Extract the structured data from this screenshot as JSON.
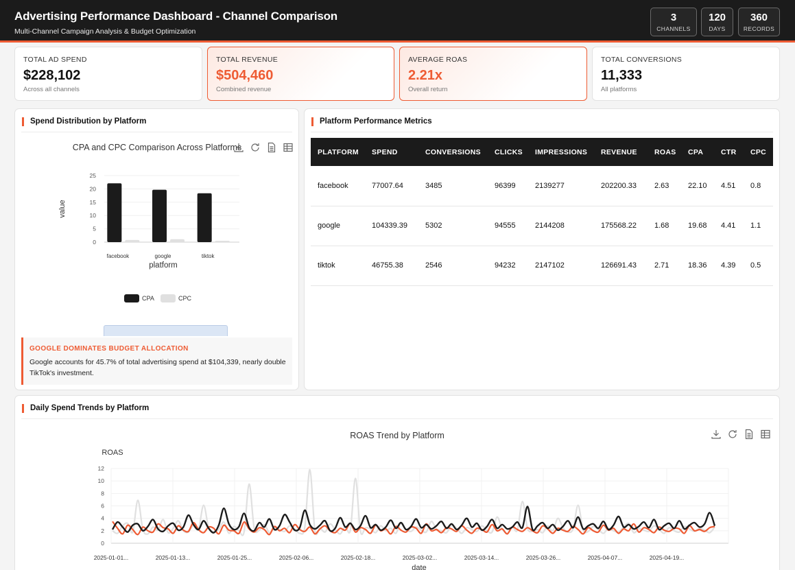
{
  "header": {
    "title": "Advertising Performance Dashboard - Channel Comparison",
    "subtitle": "Multi-Channel Campaign Analysis & Budget Optimization",
    "stats": [
      {
        "value": "3",
        "label": "CHANNELS"
      },
      {
        "value": "120",
        "label": "DAYS"
      },
      {
        "value": "360",
        "label": "RECORDS"
      }
    ]
  },
  "kpis": [
    {
      "label": "TOTAL AD SPEND",
      "value": "$228,102",
      "sub": "Across all channels"
    },
    {
      "label": "TOTAL REVENUE",
      "value": "$504,460",
      "sub": "Combined revenue"
    },
    {
      "label": "AVERAGE ROAS",
      "value": "2.21x",
      "sub": "Overall return"
    },
    {
      "label": "TOTAL CONVERSIONS",
      "value": "11,333",
      "sub": "All platforms"
    }
  ],
  "spend_panel": {
    "title": "Spend Distribution by Platform",
    "insight_title": "GOOGLE DOMINATES BUDGET ALLOCATION",
    "insight_text": "Google accounts for 45.7% of total advertising spend at $104,339, nearly double TikTok's investment."
  },
  "metrics_panel": {
    "title": "Platform Performance Metrics",
    "columns": [
      "PLATFORM",
      "SPEND",
      "CONVERSIONS",
      "CLICKS",
      "IMPRESSIONS",
      "REVENUE",
      "ROAS",
      "CPA",
      "CTR",
      "CPC"
    ],
    "rows": [
      [
        "facebook",
        "77007.64",
        "3485",
        "96399",
        "2139277",
        "202200.33",
        "2.63",
        "22.10",
        "4.51",
        "0.8"
      ],
      [
        "google",
        "104339.39",
        "5302",
        "94555",
        "2144208",
        "175568.22",
        "1.68",
        "19.68",
        "4.41",
        "1.1"
      ],
      [
        "tiktok",
        "46755.38",
        "2546",
        "94232",
        "2147102",
        "126691.43",
        "2.71",
        "18.36",
        "4.39",
        "0.5"
      ]
    ]
  },
  "trend_panel": {
    "title": "Daily Spend Trends by Platform"
  },
  "icons": [
    "download-icon",
    "refresh-icon",
    "data-view-icon",
    "table-icon"
  ],
  "colors": {
    "accent": "#ee5b33",
    "dark": "#1b1b1b",
    "light_series": "#e0e0e0"
  },
  "chart_data": [
    {
      "type": "bar",
      "title": "CPA and CPC Comparison Across Platforms",
      "xlabel": "platform",
      "ylabel": "value",
      "categories": [
        "facebook",
        "google",
        "tiktok"
      ],
      "series": [
        {
          "name": "CPA",
          "values": [
            22.1,
            19.68,
            18.36
          ],
          "color": "#1b1b1b"
        },
        {
          "name": "CPC",
          "values": [
            0.8,
            1.1,
            0.5
          ],
          "color": "#e0e0e0"
        }
      ],
      "ylim": [
        0,
        25
      ],
      "yticks": [
        0,
        5,
        10,
        15,
        20,
        25
      ],
      "legend": "bottom",
      "grid": true
    },
    {
      "type": "line",
      "title": "ROAS Trend by Platform",
      "xlabel": "date",
      "ylabel": "ROAS",
      "ylim": [
        0,
        12
      ],
      "yticks": [
        0,
        2,
        4,
        6,
        8,
        10,
        12
      ],
      "xtick_labels": [
        "2025-01-01...",
        "2025-01-13...",
        "2025-01-25...",
        "2025-02-06...",
        "2025-02-18...",
        "2025-03-02...",
        "2025-03-14...",
        "2025-03-26...",
        "2025-04-07...",
        "2025-04-19..."
      ],
      "grid": true,
      "series": [
        {
          "color": "#1b1b1b",
          "values": [
            2.2,
            3.4,
            2.6,
            1.8,
            2.9,
            3.1,
            2.0,
            2.7,
            3.8,
            2.3,
            1.9,
            2.8,
            3.2,
            2.1,
            2.6,
            4.5,
            3.0,
            2.2,
            3.6,
            2.4,
            1.7,
            2.9,
            5.6,
            3.1,
            2.2,
            2.7,
            4.8,
            2.5,
            2.0,
            3.3,
            2.6,
            3.9,
            2.2,
            2.8,
            4.6,
            3.4,
            2.1,
            2.5,
            5.3,
            3.0,
            2.3,
            2.9,
            3.6,
            2.0,
            2.4,
            4.1,
            2.6,
            3.2,
            2.2,
            2.8,
            4.4,
            2.5,
            3.0,
            2.1,
            2.6,
            3.7,
            2.4,
            3.3,
            2.2,
            2.7,
            3.9,
            2.5,
            3.0,
            2.3,
            2.8,
            3.5,
            2.4,
            3.1,
            2.2,
            2.9,
            4.0,
            2.6,
            3.2,
            2.1,
            2.7,
            3.8,
            2.4,
            3.0,
            2.3,
            2.6,
            3.4,
            2.5,
            5.9,
            2.2,
            2.8,
            3.3,
            2.4,
            3.0,
            2.1,
            2.7,
            3.6,
            2.5,
            4.2,
            2.3,
            2.8,
            3.1,
            2.4,
            3.5,
            2.2,
            2.9,
            4.3,
            2.6,
            3.0,
            2.3,
            2.7,
            3.4,
            2.5,
            3.8,
            2.2,
            2.8,
            3.2,
            2.4,
            3.6,
            2.3,
            2.9,
            3.3,
            2.6,
            3.1,
            4.9,
            2.8
          ]
        },
        {
          "color": "#ee5b33",
          "values": [
            3.5,
            2.4,
            1.5,
            2.9,
            2.2,
            1.4,
            2.6,
            2.0,
            1.8,
            3.1,
            2.5,
            2.3,
            1.6,
            2.8,
            2.1,
            1.9,
            3.3,
            2.2,
            1.7,
            2.6,
            2.4,
            1.5,
            2.9,
            2.1,
            2.0,
            1.6,
            3.4,
            2.3,
            1.8,
            2.5,
            2.2,
            1.4,
            2.7,
            2.0,
            2.4,
            1.7,
            3.0,
            2.2,
            1.9,
            2.6,
            1.5,
            2.3,
            2.8,
            2.0,
            1.7,
            2.4,
            2.1,
            3.2,
            1.8,
            2.5,
            2.2,
            1.6,
            2.9,
            2.0,
            2.3,
            1.5,
            2.7,
            2.1,
            1.8,
            2.6,
            2.4,
            1.6,
            3.1,
            2.0,
            2.2,
            1.7,
            2.5,
            2.3,
            1.9,
            2.8,
            2.1,
            1.6,
            2.4,
            2.2,
            1.8,
            3.0,
            2.0,
            2.3,
            1.5,
            2.6,
            2.2,
            1.9,
            2.5,
            2.0,
            1.7,
            2.8,
            2.3,
            1.6,
            2.4,
            2.1,
            1.9,
            2.7,
            2.2,
            1.5,
            2.5,
            2.0,
            1.8,
            2.9,
            2.1,
            2.4,
            1.6,
            2.3,
            2.0,
            3.1,
            1.8,
            2.5,
            2.2,
            1.7,
            2.6,
            2.1,
            1.9,
            2.4,
            2.3,
            1.6,
            2.8,
            2.0,
            2.2,
            1.9,
            2.5,
            2.7
          ]
        },
        {
          "color": "#e0e0e0",
          "values": [
            2.0,
            1.6,
            2.8,
            3.2,
            1.8,
            6.9,
            2.2,
            1.5,
            2.6,
            2.1,
            3.8,
            1.7,
            2.4,
            3.6,
            2.0,
            1.8,
            2.9,
            2.3,
            6.1,
            2.5,
            1.9,
            2.2,
            3.4,
            1.6,
            2.7,
            2.0,
            1.8,
            9.5,
            2.4,
            2.1,
            3.0,
            1.7,
            2.5,
            2.2,
            1.9,
            2.8,
            2.3,
            1.6,
            2.6,
            11.8,
            2.0,
            2.4,
            1.8,
            3.1,
            2.2,
            1.5,
            2.7,
            2.1,
            10.4,
            1.9,
            2.5,
            2.3,
            1.7,
            2.8,
            2.0,
            2.4,
            1.6,
            3.3,
            2.2,
            1.9,
            2.6,
            2.1,
            1.8,
            3.5,
            2.3,
            2.0,
            1.7,
            2.9,
            2.4,
            1.6,
            2.5,
            2.2,
            1.9,
            2.8,
            2.0,
            1.8,
            4.2,
            2.3,
            1.6,
            2.6,
            2.1,
            6.7,
            2.4,
            1.9,
            2.2,
            1.7,
            2.8,
            2.0,
            4.0,
            2.5,
            1.8,
            2.3,
            6.1,
            2.1,
            1.9,
            2.7,
            2.2,
            1.6,
            2.4,
            2.0,
            1.8,
            2.6,
            3.2,
            1.7,
            2.3,
            2.1,
            1.9,
            2.8,
            2.2,
            1.6,
            2.5,
            2.0,
            1.8,
            2.7,
            2.3,
            1.9,
            2.4,
            2.1,
            1.7,
            2.6
          ]
        }
      ]
    }
  ]
}
